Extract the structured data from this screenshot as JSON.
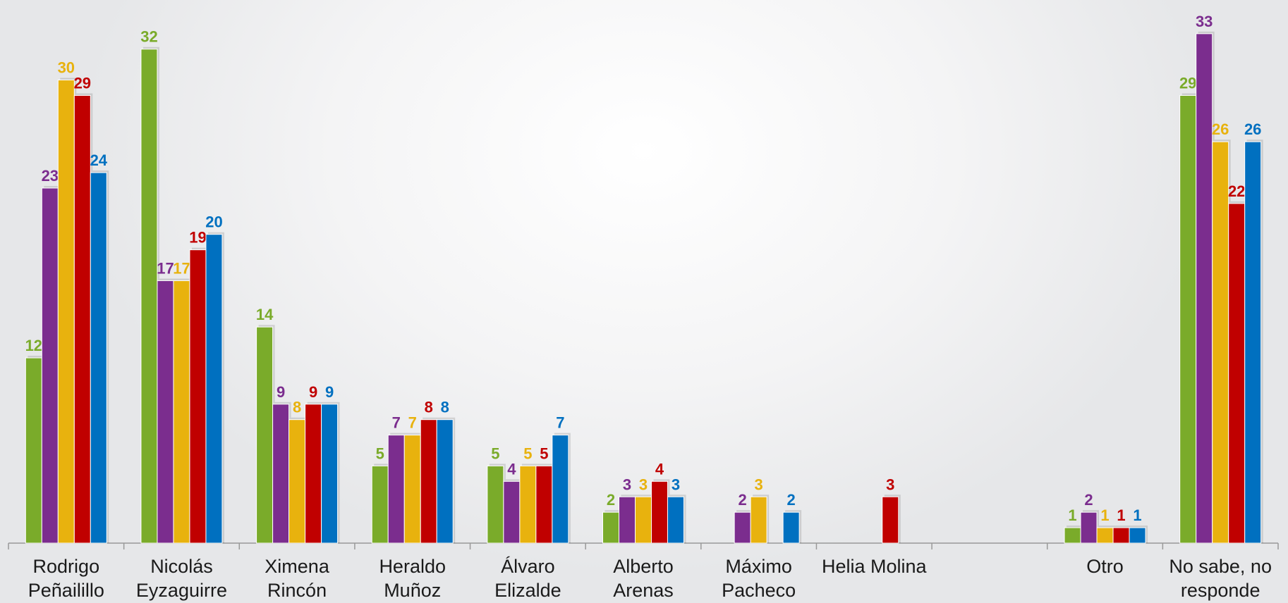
{
  "chart_data": {
    "type": "bar",
    "categories": [
      "Rodrigo Peñailillo",
      "Nicolás Eyzaguirre",
      "Ximena Rincón",
      "Heraldo Muñoz",
      "Álvaro Elizalde",
      "Alberto Arenas",
      "Máximo Pacheco",
      "Helia Molina",
      null,
      "Otro",
      "No sabe, no responde"
    ],
    "series": [
      {
        "color": "#7aab2a",
        "values": [
          12,
          32,
          14,
          5,
          5,
          2,
          null,
          null,
          null,
          1,
          29
        ]
      },
      {
        "color": "#7b2d8e",
        "values": [
          23,
          17,
          9,
          7,
          4,
          3,
          2,
          null,
          null,
          2,
          33
        ]
      },
      {
        "color": "#e8b20e",
        "values": [
          30,
          17,
          8,
          7,
          5,
          3,
          3,
          null,
          null,
          1,
          26
        ]
      },
      {
        "color": "#c00000",
        "values": [
          29,
          19,
          9,
          8,
          5,
          4,
          null,
          3,
          null,
          1,
          22
        ]
      },
      {
        "color": "#0070c0",
        "values": [
          24,
          20,
          9,
          8,
          7,
          3,
          2,
          null,
          null,
          1,
          26
        ]
      }
    ],
    "ylim": [
      0,
      35
    ]
  }
}
